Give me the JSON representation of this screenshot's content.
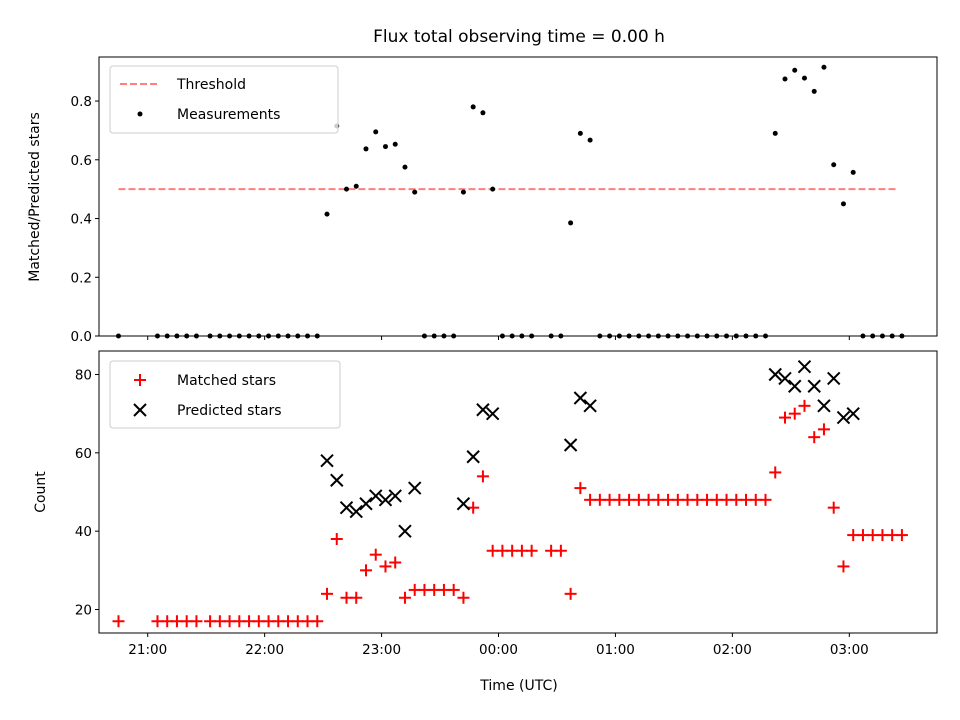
{
  "title": "Flux total observing time = 0.00 h",
  "colors": {
    "threshold": "#ff7f7f",
    "measurement": "#000000",
    "matched": "#ff0000",
    "predicted": "#000000"
  },
  "chart_data": [
    {
      "type": "scatter",
      "ylabel": "Matched/Predicted stars",
      "xlabel": "",
      "xlim": [
        "20:35",
        "03:45"
      ],
      "ylim": [
        0,
        0.95
      ],
      "yticks": [
        "0.0",
        "0.2",
        "0.4",
        "0.6",
        "0.8"
      ],
      "legend_position": "top-left",
      "series": [
        {
          "name": "Threshold",
          "style": "dashed-line",
          "color": "#ff7f7f",
          "points": [
            [
              "20:45",
              0.5
            ],
            [
              "03:25",
              0.5
            ]
          ]
        },
        {
          "name": "Measurements",
          "style": "dot",
          "color": "#000000",
          "points": [
            [
              "20:45",
              0.0
            ],
            [
              "21:05",
              0.0
            ],
            [
              "21:10",
              0.0
            ],
            [
              "21:15",
              0.0
            ],
            [
              "21:20",
              0.0
            ],
            [
              "21:25",
              0.0
            ],
            [
              "21:32",
              0.0
            ],
            [
              "21:37",
              0.0
            ],
            [
              "21:42",
              0.0
            ],
            [
              "21:47",
              0.0
            ],
            [
              "21:52",
              0.0
            ],
            [
              "21:57",
              0.0
            ],
            [
              "22:02",
              0.0
            ],
            [
              "22:07",
              0.0
            ],
            [
              "22:12",
              0.0
            ],
            [
              "22:17",
              0.0
            ],
            [
              "22:22",
              0.0
            ],
            [
              "22:27",
              0.0
            ],
            [
              "22:32",
              0.415
            ],
            [
              "22:37",
              0.715
            ],
            [
              "22:42",
              0.5
            ],
            [
              "22:47",
              0.51
            ],
            [
              "22:52",
              0.637
            ],
            [
              "22:57",
              0.695
            ],
            [
              "23:02",
              0.645
            ],
            [
              "23:07",
              0.653
            ],
            [
              "23:12",
              0.575
            ],
            [
              "23:17",
              0.49
            ],
            [
              "23:22",
              0.0
            ],
            [
              "23:27",
              0.0
            ],
            [
              "23:32",
              0.0
            ],
            [
              "23:37",
              0.0
            ],
            [
              "23:42",
              0.49
            ],
            [
              "23:47",
              0.78
            ],
            [
              "23:52",
              0.76
            ],
            [
              "23:57",
              0.5
            ],
            [
              "00:02",
              0.0
            ],
            [
              "00:07",
              0.0
            ],
            [
              "00:12",
              0.0
            ],
            [
              "00:17",
              0.0
            ],
            [
              "00:27",
              0.0
            ],
            [
              "00:32",
              0.0
            ],
            [
              "00:37",
              0.385
            ],
            [
              "00:42",
              0.69
            ],
            [
              "00:47",
              0.667
            ],
            [
              "00:52",
              0.0
            ],
            [
              "00:57",
              0.0
            ],
            [
              "01:02",
              0.0
            ],
            [
              "01:07",
              0.0
            ],
            [
              "01:12",
              0.0
            ],
            [
              "01:17",
              0.0
            ],
            [
              "01:22",
              0.0
            ],
            [
              "01:27",
              0.0
            ],
            [
              "01:32",
              0.0
            ],
            [
              "01:37",
              0.0
            ],
            [
              "01:42",
              0.0
            ],
            [
              "01:47",
              0.0
            ],
            [
              "01:52",
              0.0
            ],
            [
              "01:57",
              0.0
            ],
            [
              "02:02",
              0.0
            ],
            [
              "02:07",
              0.0
            ],
            [
              "02:12",
              0.0
            ],
            [
              "02:17",
              0.0
            ],
            [
              "02:22",
              0.69
            ],
            [
              "02:27",
              0.875
            ],
            [
              "02:32",
              0.905
            ],
            [
              "02:37",
              0.878
            ],
            [
              "02:42",
              0.833
            ],
            [
              "02:47",
              0.915
            ],
            [
              "02:52",
              0.583
            ],
            [
              "02:57",
              0.45
            ],
            [
              "03:02",
              0.557
            ],
            [
              "03:07",
              0.0
            ],
            [
              "03:12",
              0.0
            ],
            [
              "03:17",
              0.0
            ],
            [
              "03:22",
              0.0
            ],
            [
              "03:27",
              0.0
            ]
          ]
        }
      ]
    },
    {
      "type": "scatter",
      "ylabel": "Count",
      "xlabel": "Time (UTC)",
      "xlim": [
        "20:35",
        "03:45"
      ],
      "ylim": [
        14,
        86
      ],
      "yticks": [
        "20",
        "40",
        "60",
        "80"
      ],
      "xticks": [
        "21:00",
        "22:00",
        "23:00",
        "00:00",
        "01:00",
        "02:00",
        "03:00"
      ],
      "legend_position": "top-left",
      "series": [
        {
          "name": "Matched stars",
          "style": "plus",
          "color": "#ff0000",
          "points": [
            [
              "20:45",
              17
            ],
            [
              "21:05",
              17
            ],
            [
              "21:10",
              17
            ],
            [
              "21:15",
              17
            ],
            [
              "21:20",
              17
            ],
            [
              "21:25",
              17
            ],
            [
              "21:32",
              17
            ],
            [
              "21:37",
              17
            ],
            [
              "21:42",
              17
            ],
            [
              "21:47",
              17
            ],
            [
              "21:52",
              17
            ],
            [
              "21:57",
              17
            ],
            [
              "22:02",
              17
            ],
            [
              "22:07",
              17
            ],
            [
              "22:12",
              17
            ],
            [
              "22:17",
              17
            ],
            [
              "22:22",
              17
            ],
            [
              "22:27",
              17
            ],
            [
              "22:32",
              24
            ],
            [
              "22:37",
              38
            ],
            [
              "22:42",
              23
            ],
            [
              "22:47",
              23
            ],
            [
              "22:52",
              30
            ],
            [
              "22:57",
              34
            ],
            [
              "23:02",
              31
            ],
            [
              "23:07",
              32
            ],
            [
              "23:12",
              23
            ],
            [
              "23:17",
              25
            ],
            [
              "23:22",
              25
            ],
            [
              "23:27",
              25
            ],
            [
              "23:32",
              25
            ],
            [
              "23:37",
              25
            ],
            [
              "23:42",
              23
            ],
            [
              "23:47",
              46
            ],
            [
              "23:52",
              54
            ],
            [
              "23:57",
              35
            ],
            [
              "00:02",
              35
            ],
            [
              "00:07",
              35
            ],
            [
              "00:12",
              35
            ],
            [
              "00:17",
              35
            ],
            [
              "00:27",
              35
            ],
            [
              "00:32",
              35
            ],
            [
              "00:37",
              24
            ],
            [
              "00:42",
              51
            ],
            [
              "00:47",
              48
            ],
            [
              "00:52",
              48
            ],
            [
              "00:57",
              48
            ],
            [
              "01:02",
              48
            ],
            [
              "01:07",
              48
            ],
            [
              "01:12",
              48
            ],
            [
              "01:17",
              48
            ],
            [
              "01:22",
              48
            ],
            [
              "01:27",
              48
            ],
            [
              "01:32",
              48
            ],
            [
              "01:37",
              48
            ],
            [
              "01:42",
              48
            ],
            [
              "01:47",
              48
            ],
            [
              "01:52",
              48
            ],
            [
              "01:57",
              48
            ],
            [
              "02:02",
              48
            ],
            [
              "02:07",
              48
            ],
            [
              "02:12",
              48
            ],
            [
              "02:17",
              48
            ],
            [
              "02:22",
              55
            ],
            [
              "02:27",
              69
            ],
            [
              "02:32",
              70
            ],
            [
              "02:37",
              72
            ],
            [
              "02:42",
              64
            ],
            [
              "02:47",
              66
            ],
            [
              "02:52",
              46
            ],
            [
              "02:57",
              31
            ],
            [
              "03:02",
              39
            ],
            [
              "03:07",
              39
            ],
            [
              "03:12",
              39
            ],
            [
              "03:17",
              39
            ],
            [
              "03:22",
              39
            ],
            [
              "03:27",
              39
            ]
          ]
        },
        {
          "name": "Predicted stars",
          "style": "x",
          "color": "#000000",
          "points": [
            [
              "22:32",
              58
            ],
            [
              "22:37",
              53
            ],
            [
              "22:42",
              46
            ],
            [
              "22:47",
              45
            ],
            [
              "22:52",
              47
            ],
            [
              "22:57",
              49
            ],
            [
              "23:02",
              48
            ],
            [
              "23:07",
              49
            ],
            [
              "23:12",
              40
            ],
            [
              "23:17",
              51
            ],
            [
              "23:42",
              47
            ],
            [
              "23:47",
              59
            ],
            [
              "23:52",
              71
            ],
            [
              "23:57",
              70
            ],
            [
              "00:37",
              62
            ],
            [
              "00:42",
              74
            ],
            [
              "00:47",
              72
            ],
            [
              "02:22",
              80
            ],
            [
              "02:27",
              79
            ],
            [
              "02:32",
              77
            ],
            [
              "02:37",
              82
            ],
            [
              "02:42",
              77
            ],
            [
              "02:47",
              72
            ],
            [
              "02:52",
              79
            ],
            [
              "02:57",
              69
            ],
            [
              "03:02",
              70
            ]
          ]
        }
      ]
    }
  ]
}
